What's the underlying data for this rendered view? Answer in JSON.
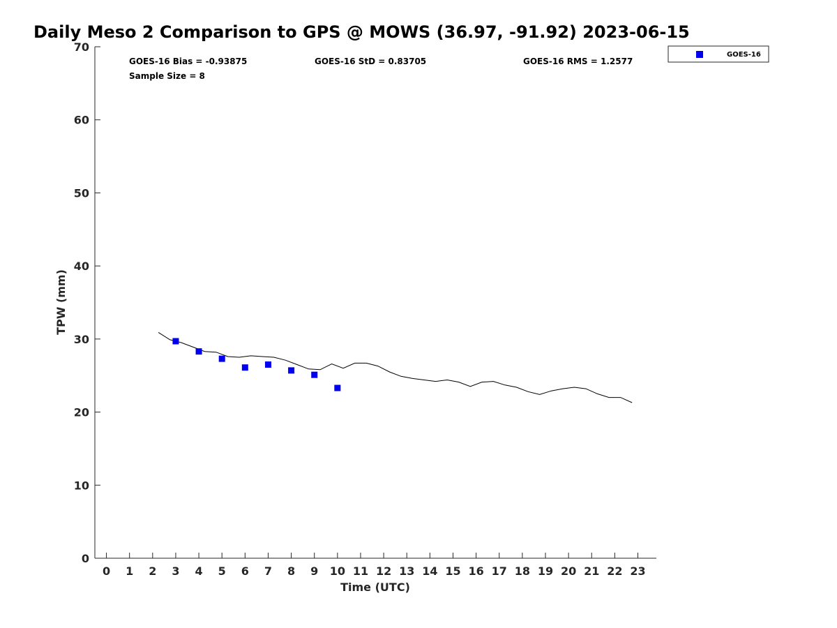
{
  "chart_data": {
    "type": "scatter",
    "title": "Daily Meso 2 Comparison to GPS @ MOWS (36.97, -91.92) 2023-06-15",
    "xlabel": "Time (UTC)",
    "ylabel": "TPW (mm)",
    "xlim": [
      -0.5,
      23.8
    ],
    "ylim": [
      0,
      70
    ],
    "x_ticks": [
      0,
      1,
      2,
      3,
      4,
      5,
      6,
      7,
      8,
      9,
      10,
      11,
      12,
      13,
      14,
      15,
      16,
      17,
      18,
      19,
      20,
      21,
      22,
      23
    ],
    "y_ticks": [
      0,
      10,
      20,
      30,
      40,
      50,
      60,
      70
    ],
    "grid": false,
    "legend_position": "top-right",
    "stats": {
      "bias": "GOES-16 Bias = -0.93875",
      "std": "GOES-16 StD = 0.83705",
      "rms": "GOES-16 RMS = 1.2577",
      "sample_size": "Sample Size = 8"
    },
    "series": [
      {
        "name": "GOES-16",
        "kind": "scatter",
        "marker": "square",
        "color": "#0000ee",
        "x": [
          3,
          4,
          5,
          6,
          7,
          8,
          9,
          10
        ],
        "y": [
          29.7,
          28.3,
          27.3,
          26.1,
          26.5,
          25.7,
          25.1,
          23.3
        ]
      },
      {
        "kind": "line",
        "color": "#000000",
        "x": [
          2.25,
          2.75,
          3.25,
          3.75,
          4.25,
          4.75,
          5.25,
          5.75,
          6.25,
          6.75,
          7.25,
          7.75,
          8.25,
          8.75,
          9.25,
          9.75,
          10.25,
          10.75,
          11.25,
          11.75,
          12.25,
          12.75,
          13.25,
          13.75,
          14.25,
          14.75,
          15.25,
          15.75,
          16.25,
          16.75,
          17.25,
          17.75,
          18.25,
          18.75,
          19.25,
          19.75,
          20.25,
          20.75,
          21.25,
          21.75,
          22.25,
          22.75
        ],
        "y": [
          30.9,
          29.9,
          29.5,
          28.9,
          28.3,
          28.2,
          27.6,
          27.5,
          27.7,
          27.6,
          27.5,
          27.1,
          26.5,
          25.9,
          25.8,
          26.6,
          26.0,
          26.7,
          26.7,
          26.3,
          25.5,
          24.9,
          24.6,
          24.4,
          24.2,
          24.4,
          24.1,
          23.5,
          24.1,
          24.2,
          23.7,
          23.4,
          22.8,
          22.4,
          22.9,
          23.2,
          23.4,
          23.2,
          22.5,
          22.0,
          22.0,
          21.3
        ]
      }
    ]
  }
}
